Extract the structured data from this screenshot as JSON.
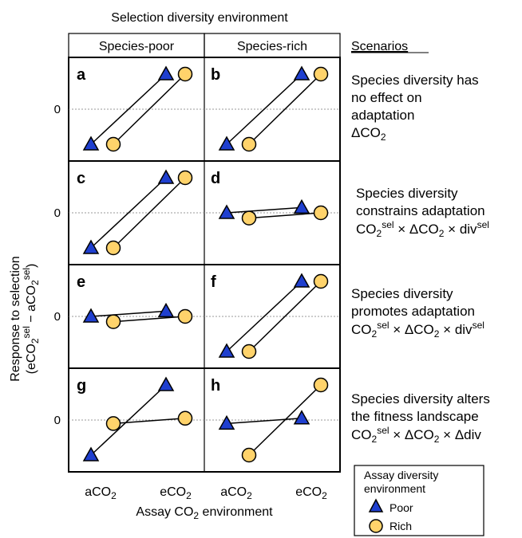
{
  "top_title": "Selection diversity environment",
  "columns": [
    "Species-poor",
    "Species-rich"
  ],
  "scenarios_heading": "Scenarios",
  "y_axis": {
    "line1": "Response to selection",
    "line2": "(eCO₂sel − aCO₂sel)"
  },
  "zero_label": "0",
  "x_ticks": [
    "aCO₂",
    "eCO₂",
    "aCO₂",
    "eCO₂"
  ],
  "x_axis_label": "Assay CO₂ environment",
  "panel_letters": [
    "a",
    "b",
    "c",
    "d",
    "e",
    "f",
    "g",
    "h"
  ],
  "scenarios": [
    {
      "lines": [
        "Species diversity has",
        "no effect on",
        "adaptation",
        "ΔCO₂"
      ]
    },
    {
      "lines": [
        "Species diversity",
        "constrains adaptation",
        "CO₂sel × ΔCO₂ × divsel"
      ]
    },
    {
      "lines": [
        "Species diversity",
        "promotes adaptation",
        "CO₂sel × ΔCO₂ × divsel"
      ]
    },
    {
      "lines": [
        "Species diversity alters",
        "the fitness landscape",
        "CO₂sel × ΔCO₂ × Δdiv"
      ]
    }
  ],
  "legend": {
    "title_line1": "Assay diversity",
    "title_line2": "environment",
    "items": [
      {
        "label": "Poor",
        "marker": "triangle",
        "color": "#1f3fcf"
      },
      {
        "label": "Rich",
        "marker": "circle",
        "color": "#ffd36b"
      }
    ]
  },
  "colors": {
    "poor_marker": "#1f3fcf",
    "rich_marker": "#ffd36b",
    "frame": "#000000",
    "zero_line": "#999999"
  },
  "chart_data": {
    "type": "line",
    "note_units": "relative response; 0 = no response",
    "panels": [
      {
        "id": "a",
        "poor": [
          -1.0,
          1.0
        ],
        "rich": [
          -1.0,
          1.0
        ]
      },
      {
        "id": "b",
        "poor": [
          -1.0,
          1.0
        ],
        "rich": [
          -1.0,
          1.0
        ]
      },
      {
        "id": "c",
        "poor": [
          -1.0,
          1.0
        ],
        "rich": [
          -1.0,
          1.0
        ]
      },
      {
        "id": "d",
        "poor": [
          0.0,
          0.15
        ],
        "rich": [
          -0.15,
          0.0
        ]
      },
      {
        "id": "e",
        "poor": [
          0.0,
          0.15
        ],
        "rich": [
          -0.15,
          0.0
        ]
      },
      {
        "id": "f",
        "poor": [
          -1.0,
          1.0
        ],
        "rich": [
          -1.0,
          1.0
        ]
      },
      {
        "id": "g",
        "poor": [
          -1.0,
          1.0
        ],
        "rich": [
          -0.1,
          0.05
        ]
      },
      {
        "id": "h",
        "poor": [
          -0.1,
          0.05
        ],
        "rich": [
          -1.0,
          1.0
        ]
      }
    ]
  }
}
